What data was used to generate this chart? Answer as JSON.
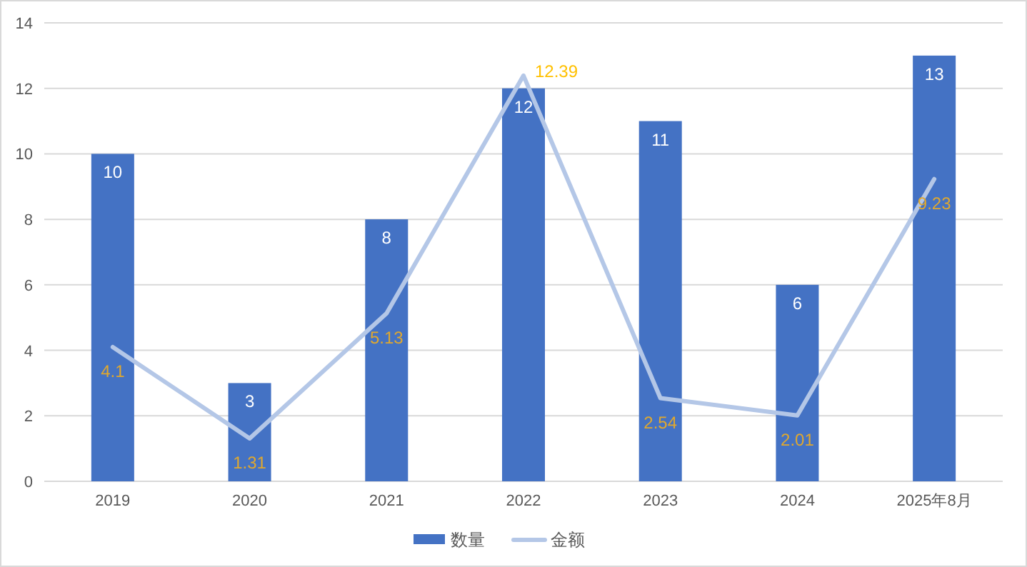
{
  "chart_data": {
    "type": "bar",
    "categories": [
      "2019",
      "2020",
      "2021",
      "2022",
      "2023",
      "2024",
      "2025年8月"
    ],
    "series": [
      {
        "name": "数量",
        "type": "bar",
        "color": "#4472c4",
        "values": [
          10,
          3,
          8,
          12,
          11,
          6,
          13
        ]
      },
      {
        "name": "金额",
        "type": "line",
        "color": "#b4c7e7",
        "values": [
          4.1,
          1.31,
          5.13,
          12.39,
          2.54,
          2.01,
          9.23
        ]
      }
    ],
    "ylim": [
      0,
      14
    ],
    "yticks": [
      0,
      2,
      4,
      6,
      8,
      10,
      12,
      14
    ],
    "grid": "y",
    "legend": "bottom",
    "data_labels": true,
    "marker": "none",
    "line_style": "solid"
  }
}
